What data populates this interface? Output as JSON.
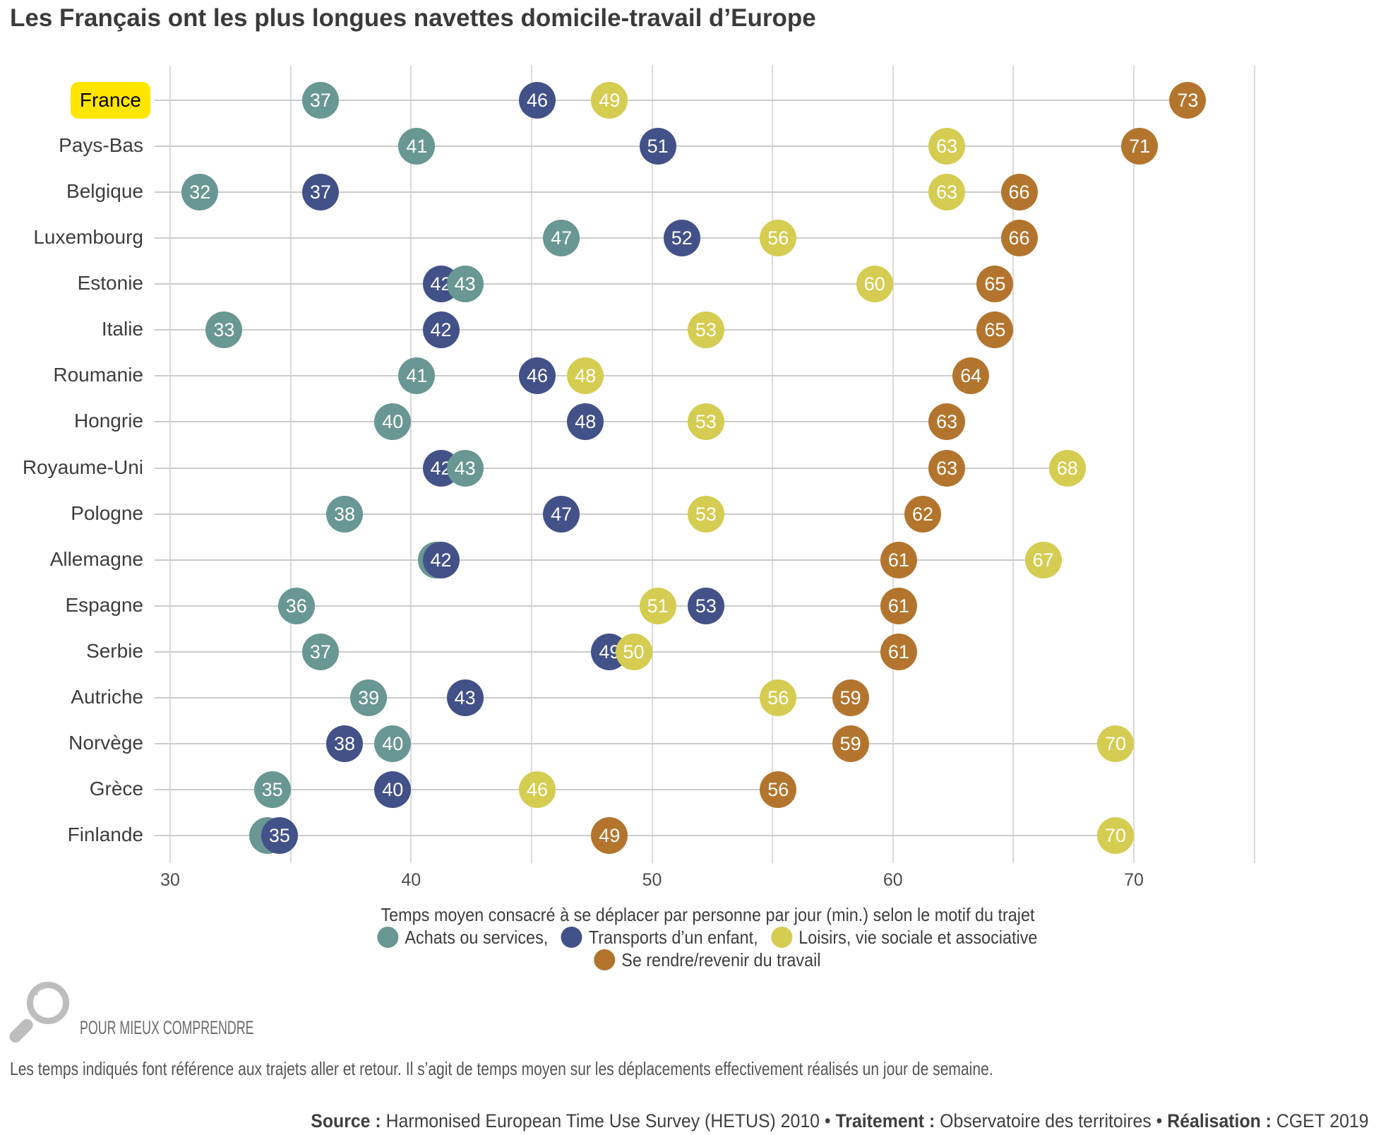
{
  "title": "Les Français ont les plus longues navettes domicile-travail d’Europe",
  "chart_data": {
    "type": "scatter",
    "caption": "Temps moyen consacré à se déplacer par personne par jour (min.) selon le motif du trajet",
    "x_ticks": [
      30,
      40,
      50,
      60,
      70
    ],
    "x_range": [
      30,
      75
    ],
    "x_gridline_step": 5,
    "series": [
      {
        "name": "Achats ou services,",
        "color": "#699793"
      },
      {
        "name": "Transports d’un enfant,",
        "color": "#435189"
      },
      {
        "name": "Loisirs, vie sociale et associative",
        "color": "#D5CC52"
      },
      {
        "name": "Se rendre/revenir du travail",
        "color": "#B3752D"
      }
    ],
    "rows": [
      {
        "country": "France",
        "highlight": true,
        "dots": [
          {
            "s": 0,
            "v": 37
          },
          {
            "s": 1,
            "v": 46
          },
          {
            "s": 2,
            "v": 49
          },
          {
            "s": 3,
            "v": 73
          }
        ]
      },
      {
        "country": "Pays-Bas",
        "dots": [
          {
            "s": 0,
            "v": 41
          },
          {
            "s": 1,
            "v": 51
          },
          {
            "s": 2,
            "v": 63
          },
          {
            "s": 3,
            "v": 71
          }
        ]
      },
      {
        "country": "Belgique",
        "dots": [
          {
            "s": 0,
            "v": 32
          },
          {
            "s": 1,
            "v": 37
          },
          {
            "s": 2,
            "v": 63
          },
          {
            "s": 3,
            "v": 66
          }
        ]
      },
      {
        "country": "Luxembourg",
        "dots": [
          {
            "s": 0,
            "v": 47
          },
          {
            "s": 1,
            "v": 52
          },
          {
            "s": 2,
            "v": 56
          },
          {
            "s": 3,
            "v": 66
          }
        ]
      },
      {
        "country": "Estonie",
        "dots": [
          {
            "s": 1,
            "v": 42
          },
          {
            "s": 0,
            "v": 43
          },
          {
            "s": 2,
            "v": 60
          },
          {
            "s": 3,
            "v": 65
          }
        ]
      },
      {
        "country": "Italie",
        "dots": [
          {
            "s": 0,
            "v": 33
          },
          {
            "s": 1,
            "v": 42
          },
          {
            "s": 2,
            "v": 53
          },
          {
            "s": 3,
            "v": 65
          }
        ]
      },
      {
        "country": "Roumanie",
        "dots": [
          {
            "s": 0,
            "v": 41
          },
          {
            "s": 1,
            "v": 46
          },
          {
            "s": 2,
            "v": 48
          },
          {
            "s": 3,
            "v": 64
          }
        ]
      },
      {
        "country": "Hongrie",
        "dots": [
          {
            "s": 0,
            "v": 40
          },
          {
            "s": 1,
            "v": 48
          },
          {
            "s": 2,
            "v": 53
          },
          {
            "s": 3,
            "v": 63
          }
        ]
      },
      {
        "country": "Royaume-Uni",
        "dots": [
          {
            "s": 1,
            "v": 42
          },
          {
            "s": 0,
            "v": 43
          },
          {
            "s": 3,
            "v": 63
          },
          {
            "s": 2,
            "v": 68
          }
        ]
      },
      {
        "country": "Pologne",
        "dots": [
          {
            "s": 0,
            "v": 38
          },
          {
            "s": 1,
            "v": 47
          },
          {
            "s": 2,
            "v": 53
          },
          {
            "s": 3,
            "v": 62
          }
        ]
      },
      {
        "country": "Allemagne",
        "dots": [
          {
            "s": 0,
            "v": 42,
            "x": 41.8,
            "label_hidden": true
          },
          {
            "s": 1,
            "v": 42
          },
          {
            "s": 3,
            "v": 61
          },
          {
            "s": 2,
            "v": 67
          }
        ]
      },
      {
        "country": "Espagne",
        "dots": [
          {
            "s": 0,
            "v": 36
          },
          {
            "s": 2,
            "v": 51
          },
          {
            "s": 1,
            "v": 53
          },
          {
            "s": 3,
            "v": 61
          }
        ]
      },
      {
        "country": "Serbie",
        "dots": [
          {
            "s": 0,
            "v": 37
          },
          {
            "s": 1,
            "v": 49
          },
          {
            "s": 2,
            "v": 50
          },
          {
            "s": 3,
            "v": 61
          }
        ]
      },
      {
        "country": "Autriche",
        "dots": [
          {
            "s": 0,
            "v": 39
          },
          {
            "s": 1,
            "v": 43
          },
          {
            "s": 2,
            "v": 56
          },
          {
            "s": 3,
            "v": 59
          }
        ]
      },
      {
        "country": "Norvège",
        "dots": [
          {
            "s": 1,
            "v": 38
          },
          {
            "s": 0,
            "v": 40
          },
          {
            "s": 3,
            "v": 59
          },
          {
            "s": 2,
            "v": 70
          }
        ]
      },
      {
        "country": "Grèce",
        "dots": [
          {
            "s": 0,
            "v": 35
          },
          {
            "s": 1,
            "v": 40
          },
          {
            "s": 2,
            "v": 46
          },
          {
            "s": 3,
            "v": 56
          }
        ]
      },
      {
        "country": "Finlande",
        "dots": [
          {
            "s": 0,
            "v": 35,
            "x": 34.8,
            "label_hidden": true
          },
          {
            "s": 1,
            "v": 35,
            "x": 35.3
          },
          {
            "s": 3,
            "v": 49
          },
          {
            "s": 2,
            "v": 70
          }
        ]
      }
    ]
  },
  "note_heading": "POUR MIEUX COMPRENDRE",
  "note_text": "Les temps indiqués font référence aux trajets aller et retour. Il s’agit de temps moyen sur les déplacements effectivement réalisés un jour de semaine.",
  "source": {
    "label1": "Source :",
    "text1": "Harmonised European Time Use Survey (HETUS) 2010 •",
    "label2": "Traitement :",
    "text2": "Observatoire des territoires •",
    "label3": "Réalisation :",
    "text3": "CGET 2019"
  }
}
